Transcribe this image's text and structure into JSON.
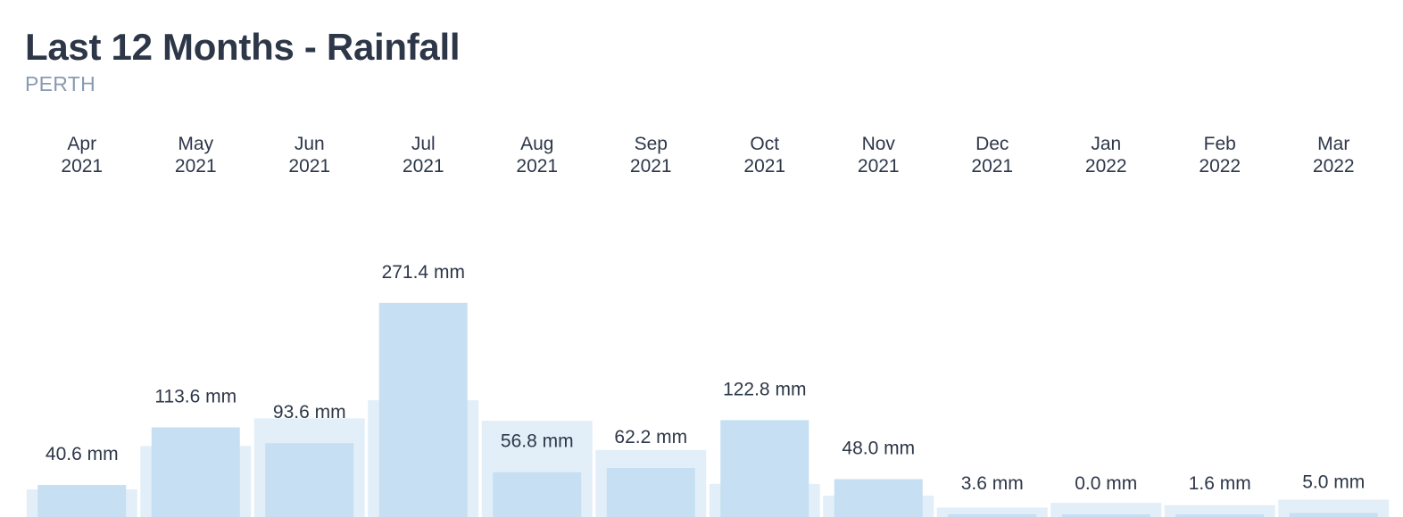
{
  "title": "Last 12 Months - Rainfall",
  "subtitle": "PERTH",
  "colors": {
    "bar": "#c6dff2",
    "background_bar": "#e2eff9",
    "text": "#2d3748",
    "subtitle": "#8a9ab0"
  },
  "chart_data": {
    "type": "bar",
    "categories": [
      {
        "month": "Apr",
        "year": "2021"
      },
      {
        "month": "May",
        "year": "2021"
      },
      {
        "month": "Jun",
        "year": "2021"
      },
      {
        "month": "Jul",
        "year": "2021"
      },
      {
        "month": "Aug",
        "year": "2021"
      },
      {
        "month": "Sep",
        "year": "2021"
      },
      {
        "month": "Oct",
        "year": "2021"
      },
      {
        "month": "Nov",
        "year": "2021"
      },
      {
        "month": "Dec",
        "year": "2021"
      },
      {
        "month": "Jan",
        "year": "2022"
      },
      {
        "month": "Feb",
        "year": "2022"
      },
      {
        "month": "Mar",
        "year": "2022"
      }
    ],
    "series": [
      {
        "values": [
          40.6,
          113.6,
          93.6,
          271.4,
          56.8,
          62.2,
          122.8,
          48.0,
          3.6,
          0.0,
          1.6,
          5.0
        ],
        "labels": [
          "40.6 mm",
          "113.6 mm",
          "93.6 mm",
          "271.4 mm",
          "56.8 mm",
          "62.2 mm",
          "122.8 mm",
          "48.0 mm",
          "3.6 mm",
          "0.0 mm",
          "1.6 mm",
          "5.0 mm"
        ]
      },
      {
        "values": [
          35,
          90,
          125,
          148,
          122,
          85,
          42,
          27,
          12,
          18,
          15,
          22
        ]
      }
    ],
    "unit": "mm",
    "grid": false,
    "legend": "none"
  }
}
